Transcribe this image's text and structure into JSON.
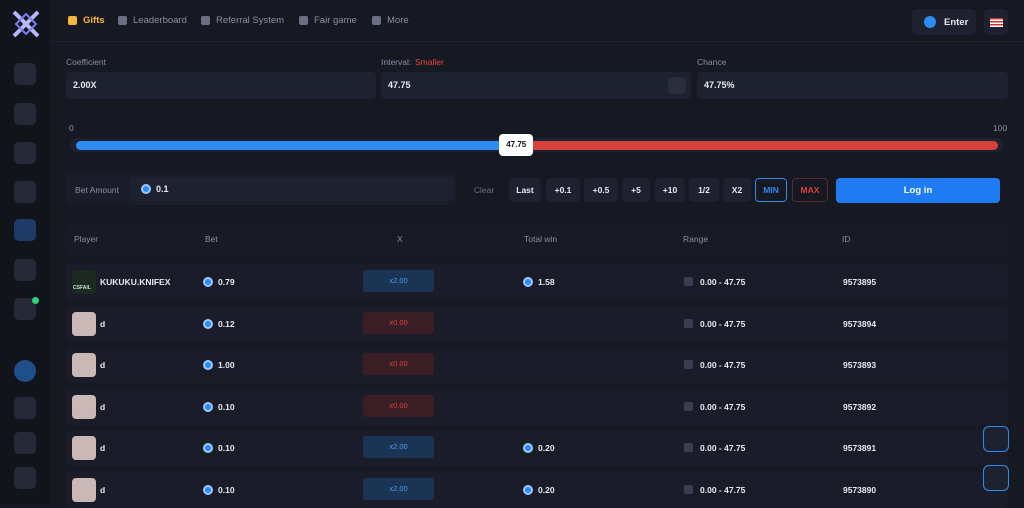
{
  "nav": {
    "items": [
      "Gifts",
      "Leaderboard",
      "Referral System",
      "Fair game",
      "More"
    ],
    "enter": "Enter"
  },
  "fields": {
    "coefficient": {
      "label": "Coefficient",
      "value": "2.00X"
    },
    "interval": {
      "label": "Interval:",
      "mode": "Smaller",
      "value": "47.75"
    },
    "chance": {
      "label": "Chance",
      "value": "47.75%"
    }
  },
  "slider": {
    "min": 0,
    "max": 100,
    "value": 47.75
  },
  "bet": {
    "label": "Bet Amount",
    "value": "0.1",
    "buttons": [
      "Clear",
      "Last",
      "+0.1",
      "+0.5",
      "+5",
      "+10",
      "1/2",
      "X2",
      "MIN",
      "MAX"
    ],
    "login": "Log in"
  },
  "table": {
    "headers": [
      "Player",
      "Bet",
      "X",
      "Total win",
      "Range",
      "ID"
    ],
    "rows": [
      {
        "player": "KUKUKU.KNIFEX",
        "avatar_label": "CSFAIL",
        "bet": "0.79",
        "x": "x2.00",
        "win": "1.58",
        "range": "0.00 - 47.75",
        "id": "9573895"
      },
      {
        "player": "d",
        "bet": "0.12",
        "x": "x0.00",
        "range": "0.00 - 47.75",
        "id": "9573894"
      },
      {
        "player": "d",
        "bet": "1.00",
        "x": "x0.00",
        "range": "0.00 - 47.75",
        "id": "9573893"
      },
      {
        "player": "d",
        "bet": "0.10",
        "x": "x0.00",
        "range": "0.00 - 47.75",
        "id": "9573892"
      },
      {
        "player": "d",
        "bet": "0.10",
        "x": "x2.00",
        "win": "0.20",
        "range": "0.00 - 47.75",
        "id": "9573891"
      },
      {
        "player": "d",
        "bet": "0.10",
        "x": "x2.00",
        "win": "0.20",
        "range": "0.00 - 47.75",
        "id": "9573890"
      }
    ]
  }
}
